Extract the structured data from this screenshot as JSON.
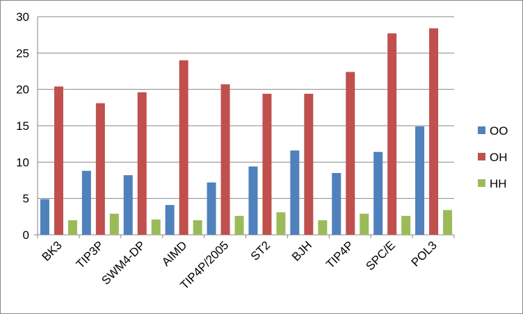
{
  "chart_data": {
    "type": "bar",
    "categories": [
      "BK3",
      "TIP3P",
      "SWM4-DP",
      "AIMD",
      "TIP4P/2005",
      "ST2",
      "BJH",
      "TIP4P",
      "SPC/E",
      "POL3"
    ],
    "series": [
      {
        "name": "OO",
        "color": "#4f81bd",
        "values": [
          4.9,
          8.8,
          8.2,
          4.1,
          7.2,
          9.4,
          11.6,
          8.5,
          11.4,
          14.9
        ]
      },
      {
        "name": "OH",
        "color": "#c0504d",
        "values": [
          20.4,
          18.1,
          19.6,
          24.0,
          20.7,
          19.4,
          19.4,
          22.4,
          27.7,
          28.4
        ]
      },
      {
        "name": "HH",
        "color": "#9bbb59",
        "values": [
          2.0,
          2.9,
          2.1,
          2.0,
          2.6,
          3.1,
          2.0,
          2.9,
          2.6,
          3.4
        ]
      }
    ],
    "ylim": [
      0,
      30
    ],
    "yticks": [
      0,
      5,
      10,
      15,
      20,
      25,
      30
    ],
    "grid": true,
    "legend": "right",
    "title": "",
    "xlabel": "",
    "ylabel": ""
  }
}
